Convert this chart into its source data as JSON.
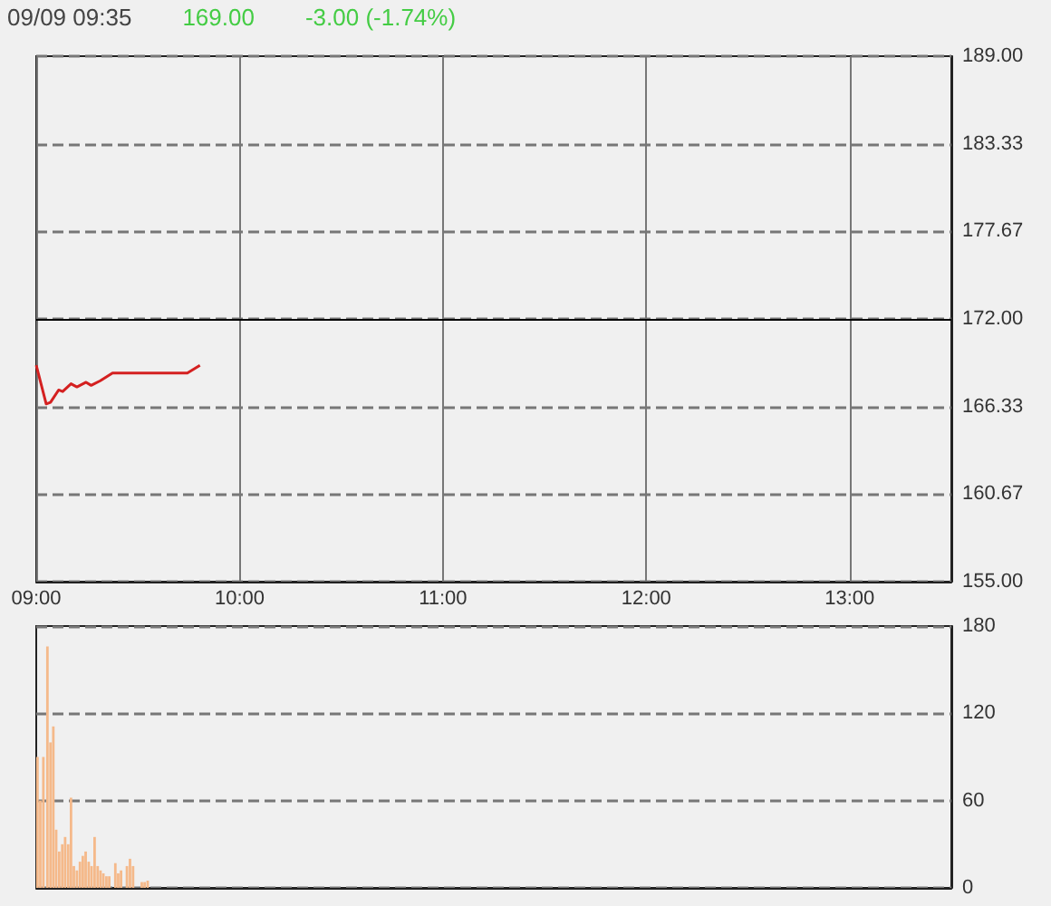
{
  "chart_data": [
    {
      "type": "line",
      "title": "09/09 09:35",
      "annotations": [
        "169.00",
        "-3.00 (-1.74%)"
      ],
      "x": [
        9.0,
        9.049,
        9.07,
        9.11,
        9.13,
        9.171,
        9.2,
        9.245,
        9.27,
        9.315,
        9.375,
        9.743,
        9.805
      ],
      "series": [
        {
          "color": "#d42020",
          "values": [
            169.0,
            166.5,
            166.6,
            167.4,
            167.3,
            167.8,
            167.6,
            167.9,
            167.7,
            168.0,
            168.5,
            168.5,
            169.0
          ]
        }
      ],
      "xlim": [
        9,
        13.5
      ],
      "xticks": [
        {
          "value": 9,
          "label": "09:00"
        },
        {
          "value": 10,
          "label": "10:00"
        },
        {
          "value": 11,
          "label": "11:00"
        },
        {
          "value": 12,
          "label": "12:00"
        },
        {
          "value": 13,
          "label": "13:00"
        }
      ],
      "ylim": [
        155,
        189
      ],
      "yticks": [
        {
          "value": 155,
          "label": "155.00"
        },
        {
          "value": 160.67,
          "label": "160.67"
        },
        {
          "value": 166.33,
          "label": "166.33"
        },
        {
          "value": 172,
          "label": "172.00"
        },
        {
          "value": 177.67,
          "label": "177.67"
        },
        {
          "value": 183.33,
          "label": "183.33"
        },
        {
          "value": 189,
          "label": "189.00"
        }
      ],
      "ref_lines": [
        {
          "axis": "y",
          "value": 172,
          "color": "#000000",
          "line_style": "solid"
        }
      ],
      "grid": true,
      "line_style": "solid"
    },
    {
      "type": "bar",
      "x": [
        9.006,
        9.02,
        9.035,
        9.055,
        9.07,
        9.084,
        9.098,
        9.113,
        9.128,
        9.142,
        9.157,
        9.171,
        9.185,
        9.2,
        9.215,
        9.229,
        9.243,
        9.258,
        9.272,
        9.287,
        9.302,
        9.316,
        9.33,
        9.345,
        9.359,
        9.389,
        9.403,
        9.417,
        9.446,
        9.461,
        9.476,
        9.519,
        9.533,
        9.548
      ],
      "series": [
        {
          "color": "#f5b98a",
          "values": [
            90,
            60,
            90,
            166,
            100,
            111,
            40,
            25,
            30,
            35,
            30,
            62,
            15,
            12,
            18,
            22,
            25,
            18,
            15,
            35,
            15,
            12,
            10,
            8,
            8,
            17,
            10,
            12,
            15,
            20,
            15,
            4,
            4,
            5
          ]
        }
      ],
      "xlim": [
        9,
        13.5
      ],
      "ylim": [
        0,
        180
      ],
      "yticks": [
        0,
        60,
        120,
        180
      ],
      "tick_labels": "y",
      "grid": "y"
    }
  ]
}
